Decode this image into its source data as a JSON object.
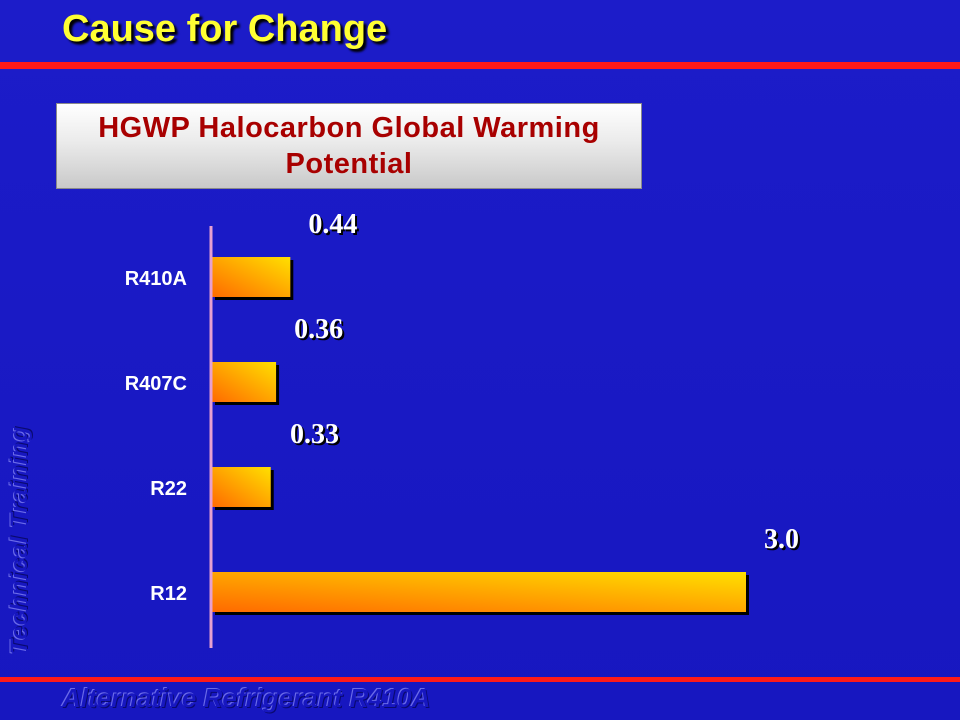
{
  "slide": {
    "title": "Cause for Change",
    "side_text": "Technical Training",
    "footer_text": "Alternative Refrigerant R410A"
  },
  "colors": {
    "background": "#1a1ac8",
    "title": "#ffff33",
    "accent_line": "#ff1a1a",
    "chart_title_text": "#a80000",
    "bar_dark": "#ff6a00",
    "bar_light": "#ffe000",
    "axis": "#e6a0d0"
  },
  "chart_data": {
    "type": "bar",
    "orientation": "horizontal",
    "title": "HGWP Halocarbon Global Warming Potential",
    "categories": [
      "R410A",
      "R407C",
      "R22",
      "R12"
    ],
    "values": [
      0.44,
      0.36,
      0.33,
      3.0
    ],
    "value_labels": [
      "0.44",
      "0.36",
      "0.33",
      "3.0"
    ],
    "xlim": [
      0,
      3.0
    ],
    "grid": false,
    "legend": "none"
  }
}
